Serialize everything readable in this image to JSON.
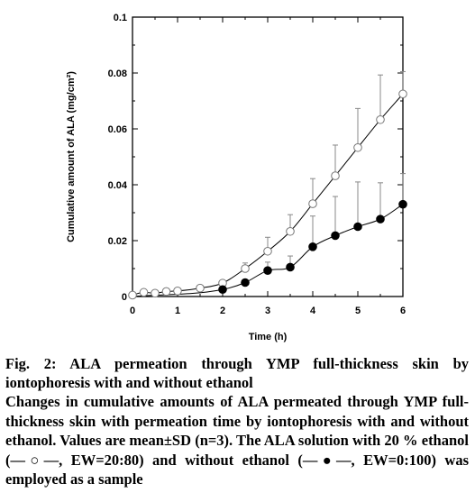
{
  "chart_data": {
    "type": "scatter",
    "xlabel": "Time (h)",
    "ylabel": "Cumulative amount of ALA (mg/cm²)",
    "xlim": [
      0,
      6
    ],
    "ylim": [
      0,
      0.1
    ],
    "xticks": [
      "0",
      "1",
      "2",
      "3",
      "4",
      "5",
      "6"
    ],
    "yticks": [
      "0",
      "0.02",
      "0.04",
      "0.06",
      "0.08",
      "0.1"
    ],
    "grid": false,
    "series": [
      {
        "marker": "open-circle",
        "x": [
          0,
          0.25,
          0.5,
          0.75,
          1,
          1.5,
          2,
          2.5,
          3,
          3.5,
          4,
          4.5,
          5,
          5.5,
          6
        ],
        "y": [
          0.0005,
          0.0015,
          0.0012,
          0.0018,
          0.002,
          0.003,
          0.0048,
          0.01,
          0.0162,
          0.0233,
          0.0332,
          0.0432,
          0.0533,
          0.0633,
          0.0725
        ],
        "err": [
          0,
          0,
          0,
          0,
          0,
          0,
          0,
          0.002,
          0.005,
          0.006,
          0.009,
          0.011,
          0.014,
          0.016,
          0.008
        ]
      },
      {
        "marker": "filled-circle",
        "x": [
          2,
          2.5,
          3,
          3.5,
          4,
          4.5,
          5,
          5.5,
          6
        ],
        "y": [
          0.0025,
          0.005,
          0.0093,
          0.0105,
          0.0178,
          0.0218,
          0.025,
          0.0277,
          0.033
        ],
        "err": [
          0,
          0.001,
          0.003,
          0.004,
          0.011,
          0.014,
          0.016,
          0.013,
          0.011
        ]
      }
    ]
  },
  "caption": {
    "title": "Fig. 2: ALA permeation through YMP full-thickness skin by iontophoresis with and without ethanol",
    "body_start": "Changes in cumulative amounts of ALA permeated through YMP full-thickness skin with permeation time by iontophoresis with and without ethanol. Values are mean±SD (n=3). The ALA solution with 20 % ethanol (",
    "symbol_open": "—○—",
    "body_mid": ", EW=20:80) and without ethanol (",
    "symbol_filled": "—●—",
    "body_end": ", EW=0:100) was employed as a sample"
  }
}
